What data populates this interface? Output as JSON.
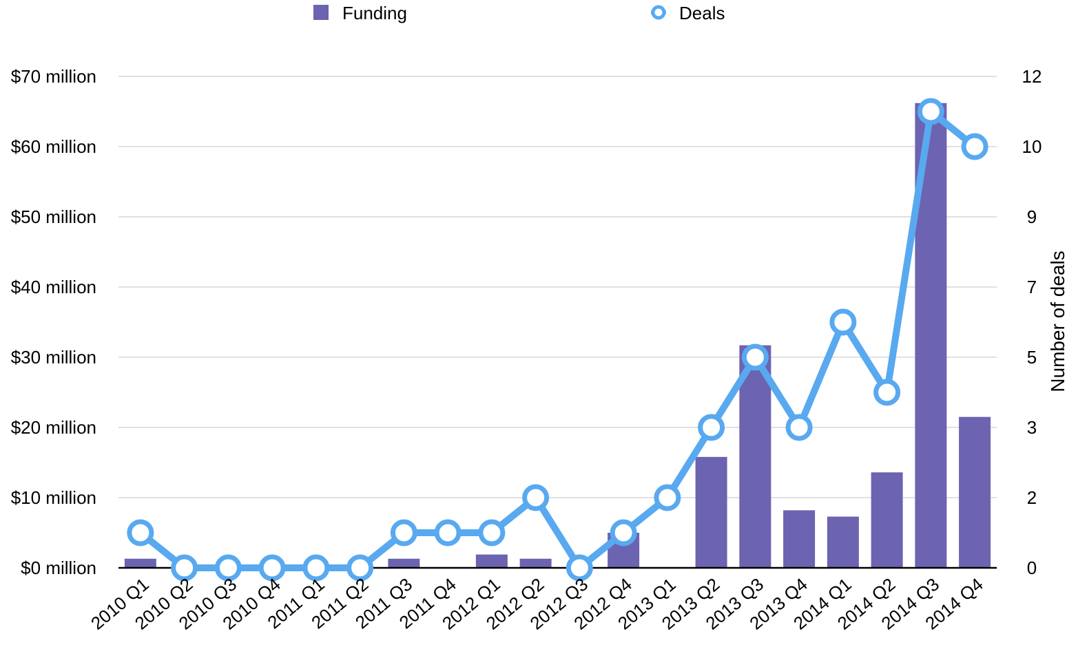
{
  "chart_data": {
    "type": "bar",
    "categories": [
      "2010 Q1",
      "2010 Q2",
      "2010 Q3",
      "2010 Q4",
      "2011 Q1",
      "2011 Q2",
      "2011 Q3",
      "2011 Q4",
      "2012 Q1",
      "2012 Q2",
      "2012 Q3",
      "2012 Q4",
      "2013 Q1",
      "2013 Q2",
      "2013 Q3",
      "2013 Q4",
      "2014 Q1",
      "2014 Q2",
      "2014 Q3",
      "2014 Q4"
    ],
    "series": [
      {
        "name": "Funding",
        "type": "bar",
        "axis": "left",
        "color": "#6c63b1",
        "values": [
          1.3,
          0,
          0,
          0,
          0,
          0,
          1.3,
          0,
          1.9,
          1.3,
          0,
          5.0,
          0,
          15.8,
          31.7,
          8.2,
          7.3,
          13.6,
          66.2,
          21.5
        ]
      },
      {
        "name": "Deals",
        "type": "line",
        "axis": "right",
        "color": "#58a9f0",
        "values": [
          1,
          0,
          0,
          0,
          0,
          0,
          1,
          1,
          1,
          2,
          0,
          1,
          2,
          3,
          5,
          3,
          6,
          4,
          11,
          10
        ]
      }
    ],
    "left_axis": {
      "ylim": [
        0,
        70
      ],
      "ticks": [
        0,
        10,
        20,
        30,
        40,
        50,
        60,
        70
      ],
      "tick_labels": [
        "$0 million",
        "$10 million",
        "$20 million",
        "$30 million",
        "$40 million",
        "$50 million",
        "$60 million",
        "$70 million"
      ]
    },
    "right_axis": {
      "ticks": [
        0,
        2,
        3,
        5,
        7,
        9,
        10,
        12
      ],
      "tick_labels": [
        "0",
        "2",
        "3",
        "5",
        "7",
        "9",
        "10",
        "12"
      ],
      "ylabel": "Number of deals"
    },
    "grid": true,
    "legend_position": "top"
  }
}
